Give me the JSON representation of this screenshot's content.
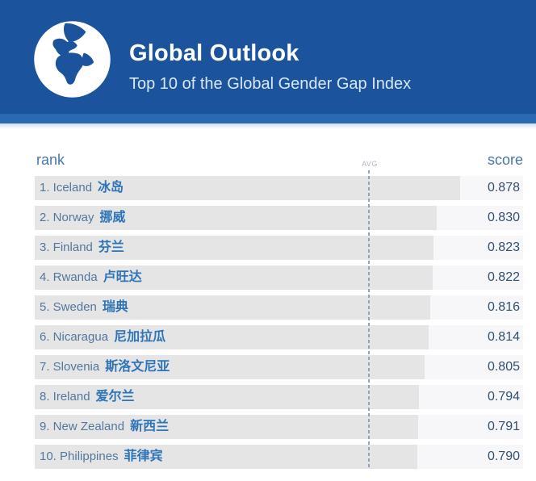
{
  "header": {
    "title": "Global Outlook",
    "subtitle": "Top 10 of the Global Gender Gap Index"
  },
  "table": {
    "rank_header": "rank",
    "score_header": "score",
    "avg_label": "AVG"
  },
  "colors": {
    "brand_blue": "#1b549d",
    "accent_strip_blue": "#2b6ab3",
    "bar_gray": "#e5e5e6",
    "row_bg_gray": "#f7f7f9",
    "label_blue": "#54779d",
    "chinese_label_blue": "#2e74b6",
    "score_navy": "#32506e",
    "avg_dash_blue": "#8aa6c3"
  },
  "chart_data": {
    "type": "bar",
    "orientation": "horizontal",
    "title": "Global Outlook",
    "subtitle": "Top 10 of the Global Gender Gap Index",
    "xlabel": "score",
    "ylabel": "rank",
    "axis": {
      "min": 0,
      "max": 1.0,
      "gridlines": false
    },
    "avg_value": 0.69,
    "avg_label": "AVG",
    "legend": "none",
    "rows": [
      {
        "rank": "1",
        "country": "Iceland",
        "country_zh": "冰岛",
        "score": "0.878"
      },
      {
        "rank": "2",
        "country": "Norway",
        "country_zh": "挪威",
        "score": "0.830"
      },
      {
        "rank": "3",
        "country": "Finland",
        "country_zh": "芬兰",
        "score": "0.823"
      },
      {
        "rank": "4",
        "country": "Rwanda",
        "country_zh": "卢旺达",
        "score": "0.822"
      },
      {
        "rank": "5",
        "country": "Sweden",
        "country_zh": "瑞典",
        "score": "0.816"
      },
      {
        "rank": "6",
        "country": "Nicaragua",
        "country_zh": "尼加拉瓜",
        "score": "0.814"
      },
      {
        "rank": "7",
        "country": "Slovenia",
        "country_zh": "斯洛文尼亚",
        "score": "0.805"
      },
      {
        "rank": "8",
        "country": "Ireland",
        "country_zh": "爱尔兰",
        "score": "0.794"
      },
      {
        "rank": "9",
        "country": "New Zealand",
        "country_zh": "新西兰",
        "score": "0.791"
      },
      {
        "rank": "10",
        "country": "Philippines",
        "country_zh": "菲律宾",
        "score": "0.790"
      }
    ]
  }
}
